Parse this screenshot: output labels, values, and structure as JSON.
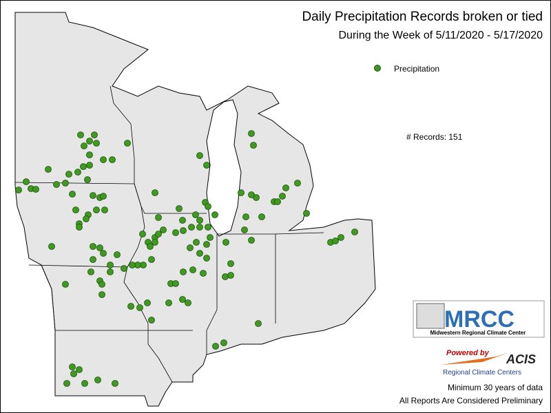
{
  "header": {
    "title": "Daily Precipitation Records broken or tied",
    "subtitle": "During the Week of 5/11/2020 - 5/17/2020"
  },
  "legend": {
    "label": "Precipitation"
  },
  "records": {
    "label": "# Records:",
    "count": 151
  },
  "logos": {
    "mrcc": "MRCC",
    "mrcc_name": "Midwestern Regional Climate Center",
    "powered_by": "Powered by",
    "acis": "ACIS",
    "acis_name": "Regional Climate Centers"
  },
  "footer": {
    "note": "Minimum 30 years of data",
    "disclaimer": "All Reports Are Considered Preliminary"
  }
}
